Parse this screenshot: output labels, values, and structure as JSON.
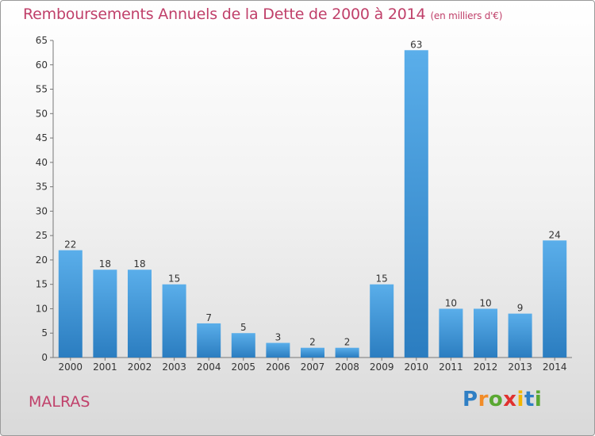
{
  "header": {
    "title": "Remboursements Annuels de la Dette de 2000 à 2014",
    "unit": "(en milliers d'€)"
  },
  "footer": {
    "commune": "MALRAS",
    "logo_letters": [
      "P",
      "r",
      "o",
      "x",
      "i",
      "t",
      "i"
    ],
    "logo_colors": [
      "#2f7fc4",
      "#f28c28",
      "#5aa832",
      "#e0312f",
      "#f2b600",
      "#2f7fc4",
      "#5aa832"
    ]
  },
  "colors": {
    "bar_light": "#5aaeea",
    "bar_dark": "#2b7dc0",
    "text": "#333333",
    "accent": "#c0406a"
  },
  "chart_data": {
    "type": "bar",
    "title": "Remboursements Annuels de la Dette de 2000 à 2014",
    "categories": [
      "2000",
      "2001",
      "2002",
      "2003",
      "2004",
      "2005",
      "2006",
      "2007",
      "2008",
      "2009",
      "2010",
      "2011",
      "2012",
      "2013",
      "2014"
    ],
    "values": [
      22,
      18,
      18,
      15,
      7,
      5,
      3,
      2,
      2,
      15,
      63,
      10,
      10,
      9,
      24
    ],
    "data_labels": [
      "22",
      "18",
      "18",
      "15",
      "7",
      "5",
      "3",
      "2",
      "2",
      "15",
      "63",
      "10",
      "10",
      "9",
      "24"
    ],
    "ylim": [
      0,
      65
    ],
    "yticks": [
      0,
      5,
      10,
      15,
      20,
      25,
      30,
      35,
      40,
      45,
      50,
      55,
      60,
      65
    ],
    "ytick_labels": [
      "0",
      "5",
      "10",
      "15",
      "20",
      "25",
      "30",
      "35",
      "40",
      "45",
      "50",
      "55",
      "60",
      "65"
    ],
    "xlabel": "",
    "ylabel": "",
    "grid": false,
    "legend": "none"
  }
}
